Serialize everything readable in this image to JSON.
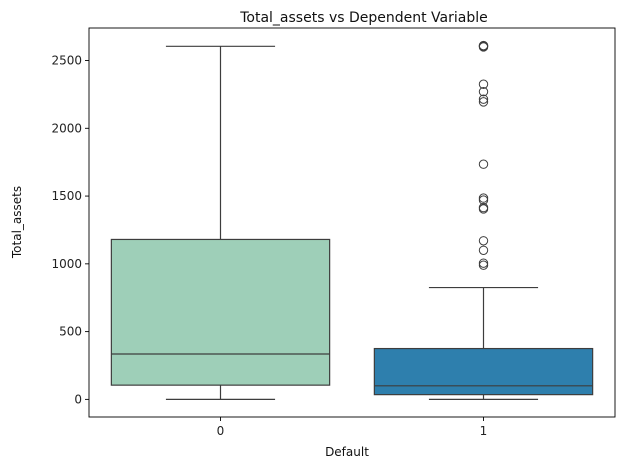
{
  "chart_data": {
    "type": "box",
    "title": "Total_assets vs Dependent Variable",
    "xlabel": "Default",
    "ylabel": "Total_assets",
    "categories": [
      "0",
      "1"
    ],
    "ylim": [
      -130,
      2740
    ],
    "yticks": [
      0,
      500,
      1000,
      1500,
      2000,
      2500
    ],
    "grid": false,
    "boxes": [
      {
        "category": "0",
        "whisker_low": 0,
        "q1": 105,
        "median": 335,
        "q3": 1180,
        "whisker_high": 2605,
        "outliers": [],
        "color": "#9ecfb8"
      },
      {
        "category": "1",
        "whisker_low": 0,
        "q1": 35,
        "median": 100,
        "q3": 375,
        "whisker_high": 825,
        "outliers": [
          990,
          1005,
          1100,
          1170,
          1405,
          1415,
          1470,
          1485,
          1735,
          2195,
          2215,
          2270,
          2325,
          2600,
          2605,
          2608,
          2610
        ],
        "color": "#2e7fad"
      }
    ]
  }
}
